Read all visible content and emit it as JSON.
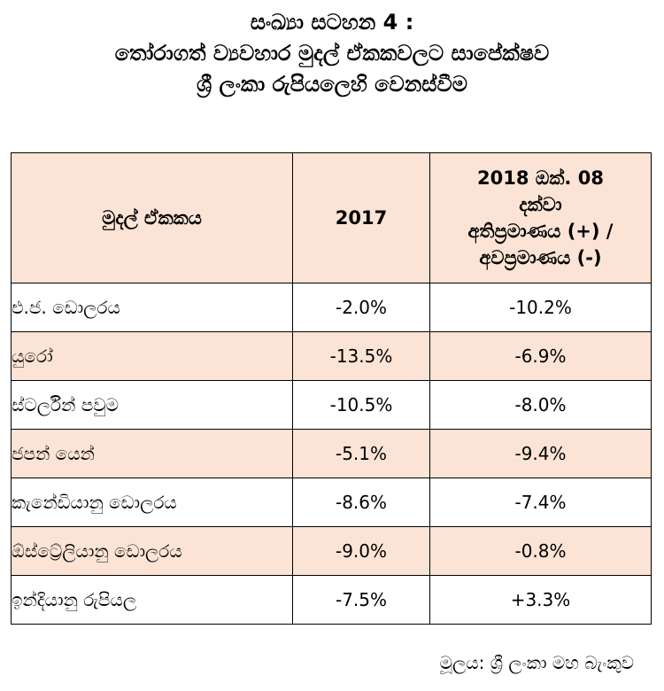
{
  "title": {
    "line1": "සංඛ්‍යා සටහන 4 :",
    "line2": "තෝරාගත් ව්‍යවහාර මුදල් ඒකකවලට සාපේක්ෂව",
    "line3": "ශ්‍රී ලංකා රුපියලෙහි වෙනස්වීම"
  },
  "table": {
    "headers": {
      "currency": "මුදල් ඒකකය",
      "year_2017": "2017",
      "ytd_line1": "2018 ඔක්. 08",
      "ytd_line2": "දක්වා",
      "ytd_line3": "අතිප්‍රමාණය (+) /",
      "ytd_line4": "අවප්‍රමාණය (-)"
    },
    "rows": [
      {
        "currency": "එ.ජ. ඩොලරය",
        "y2017": "-2.0%",
        "y2018": "-10.2%"
      },
      {
        "currency": "යුරෝ",
        "y2017": "-13.5%",
        "y2018": "-6.9%"
      },
      {
        "currency": "ස්ටර්ලින් පවුම",
        "y2017": "-10.5%",
        "y2018": "-8.0%"
      },
      {
        "currency": "ජපන් යෙන්",
        "y2017": "-5.1%",
        "y2018": "-9.4%"
      },
      {
        "currency": "කැනේඩියානු ඩොලරය",
        "y2017": "-8.6%",
        "y2018": "-7.4%"
      },
      {
        "currency": "ඕස්ට්‍රේලියානු ඩොලරය",
        "y2017": "-9.0%",
        "y2018": "-0.8%"
      },
      {
        "currency": "ඉන්දියානු රුපියල",
        "y2017": "-7.5%",
        "y2018": "+3.3%"
      }
    ]
  },
  "source": "මූලය: ශ්‍රී ලංකා මහ බැංකුව",
  "colors": {
    "header_bg": "#fbe4d5",
    "alt_row_bg": "#fbe4d5",
    "border": "#000000"
  }
}
